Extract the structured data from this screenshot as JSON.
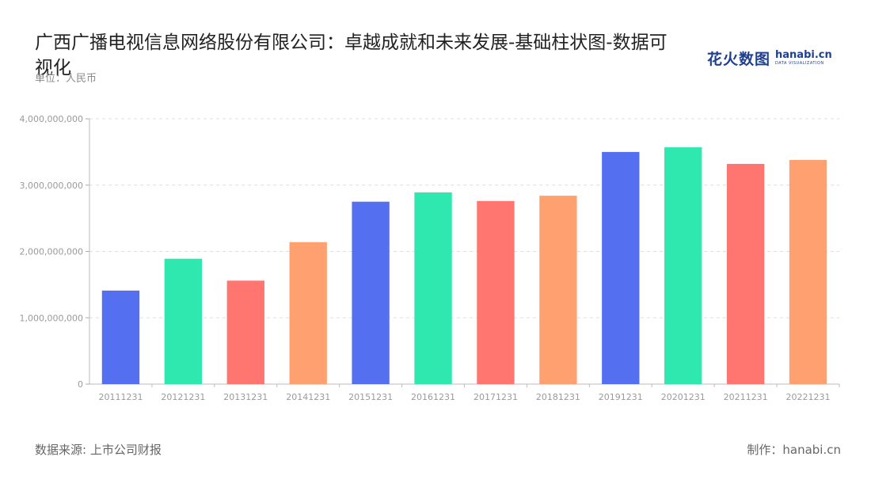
{
  "header": {
    "title": "广西广播电视信息网络股份有限公司：卓越成就和未来发展-基础柱状图-数据可视化",
    "unit": "单位：人民币"
  },
  "logo": {
    "cn": "花火数图",
    "en": "hanabi.cn",
    "sub": "DATA VISUALIZATION"
  },
  "footer": {
    "source": "数据来源: 上市公司财报",
    "maker": "制作：hanabi.cn"
  },
  "chart_data": {
    "type": "bar",
    "categories": [
      "20111231",
      "20121231",
      "20131231",
      "20141231",
      "20151231",
      "20161231",
      "20171231",
      "20181231",
      "20191231",
      "20201231",
      "20211231",
      "20221231"
    ],
    "values": [
      1410000000,
      1890000000,
      1560000000,
      2140000000,
      2750000000,
      2890000000,
      2760000000,
      2840000000,
      3500000000,
      3570000000,
      3320000000,
      3380000000
    ],
    "ylim": [
      0,
      4000000000
    ],
    "yticks": [
      0,
      1000000000,
      2000000000,
      3000000000,
      4000000000
    ],
    "ytick_labels": [
      "0",
      "1,000,000,000",
      "2,000,000,000",
      "3,000,000,000",
      "4,000,000,000"
    ],
    "colors": [
      "#5470f0",
      "#2ee8b0",
      "#ff7670",
      "#ffa070"
    ],
    "grid": true,
    "legend": "none"
  }
}
